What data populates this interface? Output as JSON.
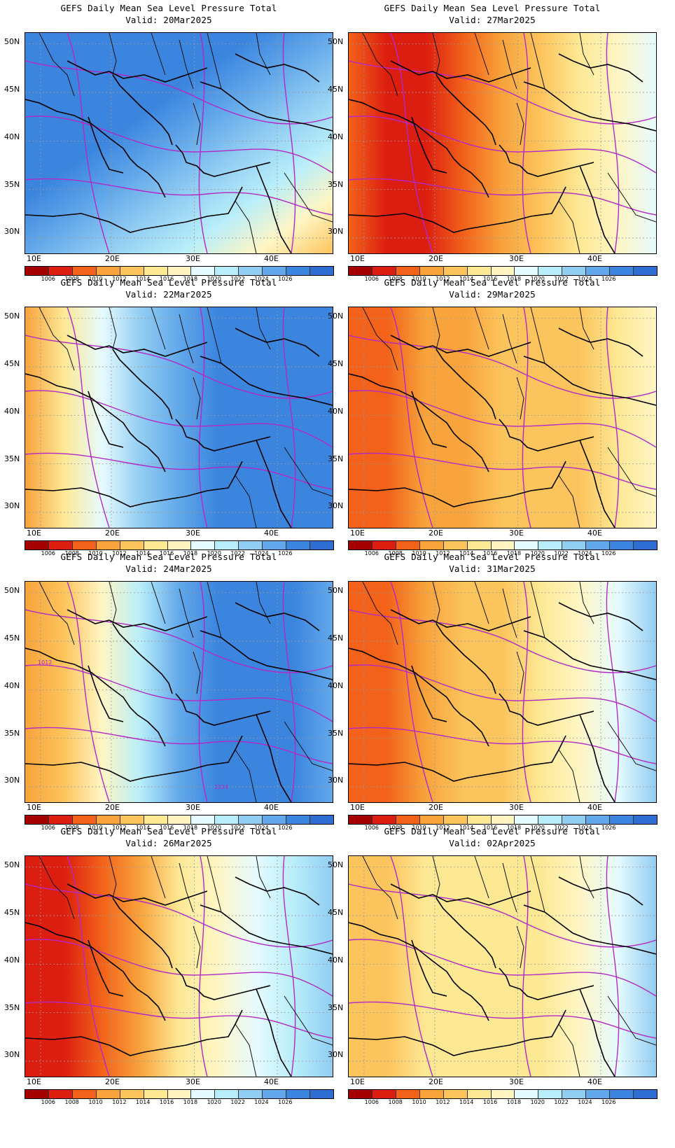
{
  "figure_title": "GEFS Daily Mean Sea Level Pressure Total",
  "x_ticks": [
    "10E",
    "20E",
    "30E",
    "40E"
  ],
  "y_ticks": [
    "50N",
    "45N",
    "40N",
    "35N",
    "30N"
  ],
  "colorbar": {
    "labels": [
      "1006",
      "1008",
      "1010",
      "1012",
      "1014",
      "1016",
      "1018",
      "1020",
      "1022",
      "1024",
      "1026"
    ],
    "colors": [
      "#a50000",
      "#dc1e10",
      "#f2621a",
      "#f8a33c",
      "#fcc45c",
      "#fde894",
      "#fff6c4",
      "#e6fbff",
      "#b8eefa",
      "#92cdf2",
      "#62a8ea",
      "#3b85df",
      "#2e6ed3"
    ]
  },
  "panels": [
    {
      "title": "GEFS Daily Mean Sea Level Pressure Total",
      "valid": "Valid: 20Mar2025"
    },
    {
      "title": "GEFS Daily Mean Sea Level Pressure Total",
      "valid": "Valid: 27Mar2025"
    },
    {
      "title": "GEFS Daily Mean Sea Level Pressure Total",
      "valid": "Valid: 22Mar2025"
    },
    {
      "title": "GEFS Daily Mean Sea Level Pressure Total",
      "valid": "Valid: 29Mar2025"
    },
    {
      "title": "GEFS Daily Mean Sea Level Pressure Total",
      "valid": "Valid: 24Mar2025"
    },
    {
      "title": "GEFS Daily Mean Sea Level Pressure Total",
      "valid": "Valid: 31Mar2025"
    },
    {
      "title": "GEFS Daily Mean Sea Level Pressure Total",
      "valid": "Valid: 26Mar2025"
    },
    {
      "title": "GEFS Daily Mean Sea Level Pressure Total",
      "valid": "Valid: 02Apr2025"
    }
  ],
  "contour_labels": [
    {
      "panel": 4,
      "text": "1012"
    },
    {
      "panel": 4,
      "text": "1024"
    }
  ]
}
